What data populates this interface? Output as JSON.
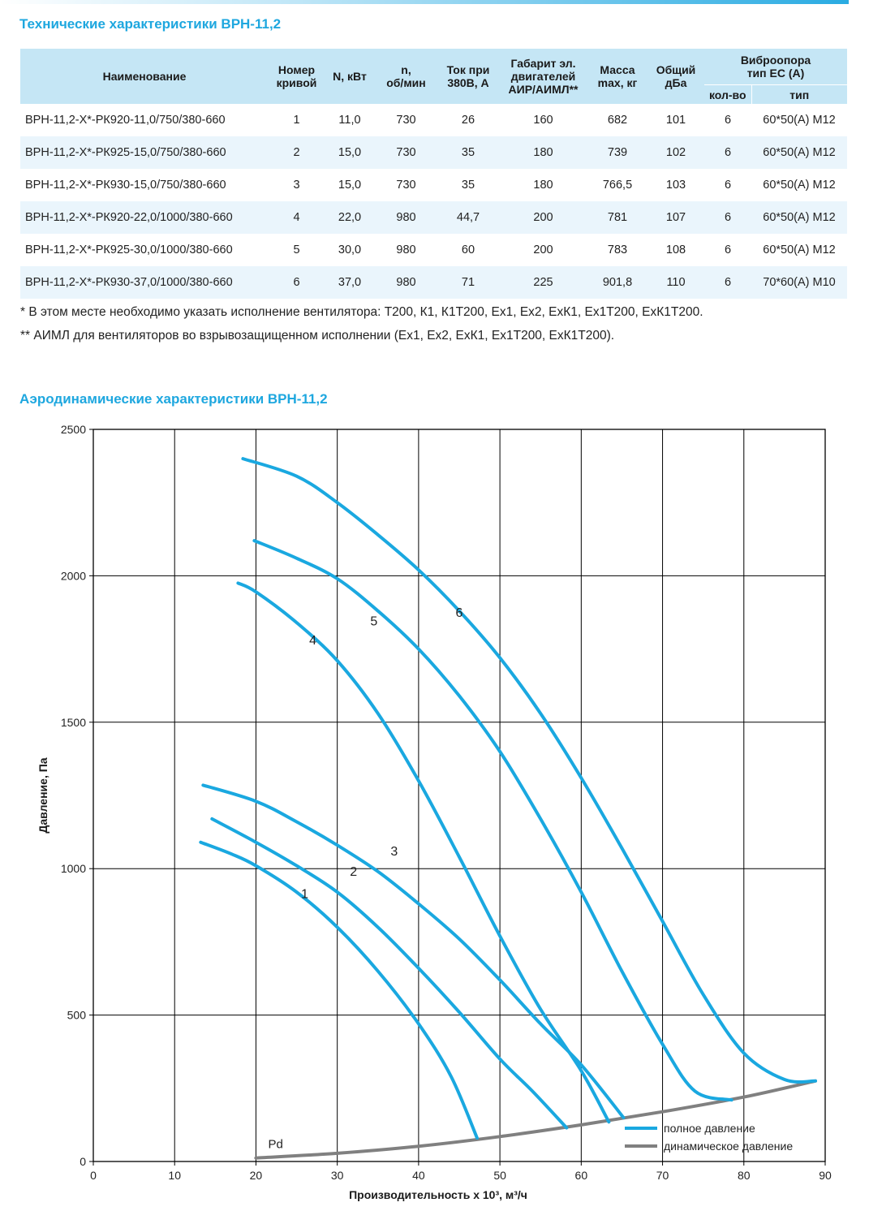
{
  "tech": {
    "title": "Технические характеристики ВРН-11,2",
    "headers": {
      "name": "Наименование",
      "curve": [
        "Номер",
        "кривой"
      ],
      "power": "N, кВт",
      "speed": [
        "n,",
        "об/мин"
      ],
      "current": [
        "Ток при",
        "380В, А"
      ],
      "motor": [
        "Габарит эл.",
        "двигателей",
        "АИР/АИМЛ**"
      ],
      "mass": [
        "Масса",
        "max, кг"
      ],
      "noise": [
        "Общий",
        "дБа"
      ],
      "vibro": [
        "Виброопора",
        "тип ЕС (А)"
      ],
      "vibro_qty": "кол-во",
      "vibro_type": "тип"
    },
    "rows": [
      {
        "name": "ВРН-11,2-Х*-РК920-11,0/750/380-660",
        "curve": "1",
        "power": "11,0",
        "speed": "730",
        "current": "26",
        "motor": "160",
        "mass": "682",
        "noise": "101",
        "qty": "6",
        "type": "60*50(А) М12"
      },
      {
        "name": "ВРН-11,2-Х*-РК925-15,0/750/380-660",
        "curve": "2",
        "power": "15,0",
        "speed": "730",
        "current": "35",
        "motor": "180",
        "mass": "739",
        "noise": "102",
        "qty": "6",
        "type": "60*50(А) М12"
      },
      {
        "name": "ВРН-11,2-Х*-РК930-15,0/750/380-660",
        "curve": "3",
        "power": "15,0",
        "speed": "730",
        "current": "35",
        "motor": "180",
        "mass": "766,5",
        "noise": "103",
        "qty": "6",
        "type": "60*50(А) М12"
      },
      {
        "name": "ВРН-11,2-Х*-РК920-22,0/1000/380-660",
        "curve": "4",
        "power": "22,0",
        "speed": "980",
        "current": "44,7",
        "motor": "200",
        "mass": "781",
        "noise": "107",
        "qty": "6",
        "type": "60*50(А) М12"
      },
      {
        "name": "ВРН-11,2-Х*-РК925-30,0/1000/380-660",
        "curve": "5",
        "power": "30,0",
        "speed": "980",
        "current": "60",
        "motor": "200",
        "mass": "783",
        "noise": "108",
        "qty": "6",
        "type": "60*50(А) М12"
      },
      {
        "name": "ВРН-11,2-Х*-РК930-37,0/1000/380-660",
        "curve": "6",
        "power": "37,0",
        "speed": "980",
        "current": "71",
        "motor": "225",
        "mass": "901,8",
        "noise": "110",
        "qty": "6",
        "type": "70*60(А) М10"
      }
    ],
    "notes": [
      "* В этом месте необходимо указать исполнение вентилятора: Т200, К1, К1Т200, Ех1, Ех2, ЕхК1, Ех1Т200, ЕхК1Т200.",
      "** АИМЛ для вентиляторов во взрывозащищенном исполнении (Ех1, Ех2, ЕхК1, Ех1Т200, ЕхК1Т200)."
    ]
  },
  "aero": {
    "title": "Аэродинамические характеристики ВРН-11,2"
  },
  "colors": {
    "accent": "#1ea7df",
    "curve": "#1aa8e0",
    "dynamic": "#808080",
    "header_bg": "#c5e6f5",
    "row_alt": "#eaf5fc"
  },
  "chart_data": {
    "type": "line",
    "xlabel": "Производительность х 10³, м³/ч",
    "ylabel": "Давление, Па",
    "xlim": [
      0,
      90
    ],
    "ylim": [
      0,
      2500
    ],
    "xticks": [
      0,
      10,
      20,
      30,
      40,
      50,
      60,
      70,
      80,
      90
    ],
    "yticks": [
      0,
      500,
      1000,
      1500,
      2000,
      2500
    ],
    "grid": true,
    "legend_position": "bottom-right",
    "legend": [
      "полное давление",
      "динамическое давление"
    ],
    "series": [
      {
        "name": "1",
        "label_at": [
          26,
          900
        ],
        "points": [
          [
            13.2,
            1090
          ],
          [
            17,
            1050
          ],
          [
            20,
            1010
          ],
          [
            25,
            920
          ],
          [
            30,
            800
          ],
          [
            35,
            650
          ],
          [
            40,
            470
          ],
          [
            44,
            290
          ],
          [
            47.2,
            80
          ]
        ]
      },
      {
        "name": "2",
        "label_at": [
          32,
          975
        ],
        "points": [
          [
            14.6,
            1170
          ],
          [
            20,
            1090
          ],
          [
            25,
            1010
          ],
          [
            30,
            920
          ],
          [
            35,
            800
          ],
          [
            40,
            660
          ],
          [
            45,
            510
          ],
          [
            50,
            350
          ],
          [
            54,
            240
          ],
          [
            58.2,
            115
          ]
        ]
      },
      {
        "name": "3",
        "label_at": [
          37,
          1045
        ],
        "points": [
          [
            13.5,
            1285
          ],
          [
            20,
            1230
          ],
          [
            25,
            1160
          ],
          [
            30,
            1080
          ],
          [
            35,
            990
          ],
          [
            40,
            880
          ],
          [
            45,
            760
          ],
          [
            50,
            620
          ],
          [
            55,
            470
          ],
          [
            60,
            330
          ],
          [
            65.2,
            150
          ]
        ]
      },
      {
        "name": "4",
        "label_at": [
          27,
          1765
        ],
        "points": [
          [
            17.8,
            1975
          ],
          [
            20,
            1945
          ],
          [
            25,
            1840
          ],
          [
            30,
            1710
          ],
          [
            35,
            1530
          ],
          [
            40,
            1300
          ],
          [
            45,
            1040
          ],
          [
            50,
            770
          ],
          [
            55,
            520
          ],
          [
            60,
            310
          ],
          [
            63.4,
            135
          ]
        ]
      },
      {
        "name": "5",
        "label_at": [
          34.5,
          1830
        ],
        "points": [
          [
            19.8,
            2120
          ],
          [
            25,
            2060
          ],
          [
            30,
            1990
          ],
          [
            35,
            1880
          ],
          [
            40,
            1750
          ],
          [
            45,
            1590
          ],
          [
            50,
            1400
          ],
          [
            55,
            1170
          ],
          [
            60,
            920
          ],
          [
            65,
            650
          ],
          [
            70,
            400
          ],
          [
            74,
            240
          ],
          [
            78.5,
            210
          ]
        ]
      },
      {
        "name": "6",
        "label_at": [
          45,
          1860
        ],
        "points": [
          [
            18.4,
            2400
          ],
          [
            25,
            2340
          ],
          [
            30,
            2250
          ],
          [
            35,
            2140
          ],
          [
            40,
            2020
          ],
          [
            45,
            1880
          ],
          [
            50,
            1720
          ],
          [
            55,
            1530
          ],
          [
            60,
            1310
          ],
          [
            65,
            1070
          ],
          [
            70,
            820
          ],
          [
            75,
            570
          ],
          [
            80,
            370
          ],
          [
            85,
            280
          ],
          [
            88.8,
            275
          ]
        ]
      }
    ],
    "dynamic_pressure": {
      "name": "Pd",
      "label_at": [
        21,
        40
      ],
      "points": [
        [
          20,
          12
        ],
        [
          30,
          28
        ],
        [
          40,
          52
        ],
        [
          50,
          85
        ],
        [
          60,
          125
        ],
        [
          70,
          170
        ],
        [
          80,
          220
        ],
        [
          88.8,
          275
        ]
      ]
    }
  }
}
